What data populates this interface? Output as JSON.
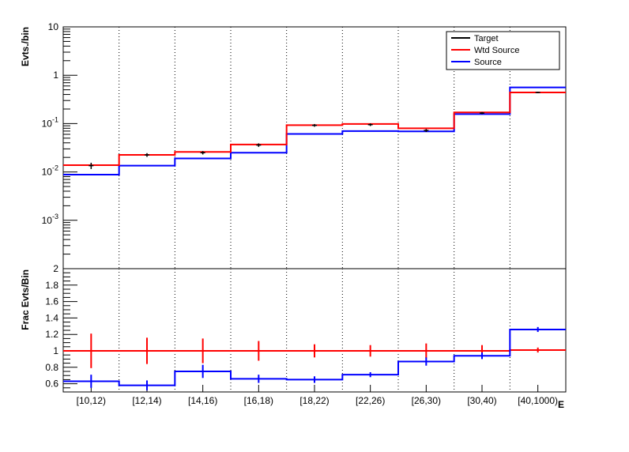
{
  "chart_data": [
    {
      "type": "line",
      "panel": "top",
      "ylabel": "Evts./bin",
      "yscale": "log",
      "ylim": [
        0.0001,
        10
      ],
      "y_ticks": [
        {
          "value": 0.001,
          "base": "10",
          "exp": "-3"
        },
        {
          "value": 0.01,
          "base": "10",
          "exp": "-2"
        },
        {
          "value": 0.1,
          "base": "10",
          "exp": "-1"
        },
        {
          "value": 1,
          "base": "1",
          "exp": ""
        },
        {
          "value": 10,
          "base": "10",
          "exp": ""
        }
      ],
      "categories": [
        "[10,12)",
        "[12,14)",
        "[14,16)",
        "[16,18)",
        "[18,22)",
        "[22,26)",
        "[26,30)",
        "[30,40)",
        "[40,1000)"
      ],
      "grid": "vertical dotted at bin edges",
      "legend_position": "top-right",
      "series": [
        {
          "name": "Target",
          "color": "#000000",
          "style": "points with error bars",
          "values": [
            0.0135,
            0.0225,
            0.025,
            0.036,
            0.092,
            0.095,
            0.072,
            0.165,
            0.44
          ],
          "errors_low": [
            0.002,
            0.002,
            0.002,
            0.003,
            0.006,
            0.006,
            0.005,
            0.008,
            0.015
          ],
          "errors_high": [
            0.002,
            0.002,
            0.002,
            0.003,
            0.006,
            0.006,
            0.005,
            0.008,
            0.015
          ]
        },
        {
          "name": "Wtd Source",
          "color": "#ff0000",
          "style": "step",
          "values": [
            0.0138,
            0.0225,
            0.026,
            0.037,
            0.093,
            0.098,
            0.08,
            0.17,
            0.44
          ]
        },
        {
          "name": "Source",
          "color": "#0000ff",
          "style": "step",
          "values": [
            0.0088,
            0.0135,
            0.019,
            0.025,
            0.061,
            0.07,
            0.069,
            0.157,
            0.56
          ]
        }
      ]
    },
    {
      "type": "line",
      "panel": "bottom",
      "ylabel": "Frac Evts/Bin",
      "xlabel": "E",
      "ylim": [
        0.5,
        2
      ],
      "y_ticks": [
        0.6,
        0.8,
        1,
        1.2,
        1.4,
        1.6,
        1.8,
        2
      ],
      "categories": [
        "[10,12)",
        "[12,14)",
        "[14,16)",
        "[16,18)",
        "[18,22)",
        "[22,26)",
        "[26,30)",
        "[30,40)",
        "[40,1000)"
      ],
      "series": [
        {
          "name": "Wtd Source",
          "color": "#ff0000",
          "style": "step with error bars",
          "values": [
            1.0,
            1.0,
            1.0,
            1.0,
            1.0,
            1.0,
            1.0,
            1.0,
            1.01
          ],
          "errors": [
            0.21,
            0.16,
            0.15,
            0.12,
            0.08,
            0.07,
            0.09,
            0.07,
            0.03
          ]
        },
        {
          "name": "Source",
          "color": "#0000ff",
          "style": "step with error bars",
          "values": [
            0.63,
            0.58,
            0.75,
            0.66,
            0.65,
            0.71,
            0.87,
            0.94,
            1.26
          ],
          "errors": [
            0.08,
            0.06,
            0.08,
            0.05,
            0.04,
            0.03,
            0.05,
            0.04,
            0.03
          ]
        }
      ]
    }
  ]
}
